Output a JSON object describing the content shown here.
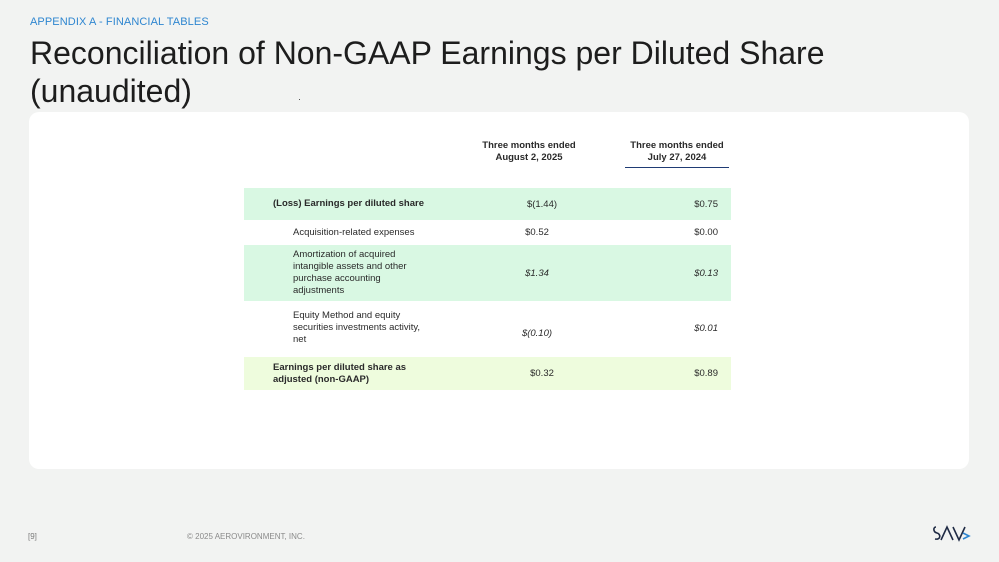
{
  "header": {
    "section": "APPENDIX A - FINANCIAL TABLES",
    "title": "Reconciliation of Non-GAAP Earnings per Diluted Share (unaudited)"
  },
  "table": {
    "columns": [
      "Three months ended August 2, 2025",
      "Three months ended July 27, 2024"
    ],
    "rows": [
      {
        "label": "(Loss) Earnings per diluted share",
        "v1": "$(1.44)",
        "v2": "$0.75"
      },
      {
        "label": "Acquisition-related expenses",
        "v1": "$0.52",
        "v2": "$0.00"
      },
      {
        "label": "Amortization of acquired intangible assets and other purchase accounting adjustments",
        "v1": "$1.34",
        "v2": "$0.13"
      },
      {
        "label": "Equity Method and equity securities investments activity, net",
        "v1": "$(0.10)",
        "v2": "$0.01"
      },
      {
        "label": "Earnings per diluted share as adjusted (non-GAAP)",
        "v1": "$0.32",
        "v2": "$0.89"
      }
    ]
  },
  "footer": {
    "page": "[9]",
    "copyright": "© 2025 AEROVIRONMENT, INC.",
    "logo_text": "AV"
  },
  "colors": {
    "accent": "#2f86d0",
    "row_green": "#d9f8e3",
    "row_lime": "#eefcdd",
    "header_rule": "#1f3b74"
  }
}
